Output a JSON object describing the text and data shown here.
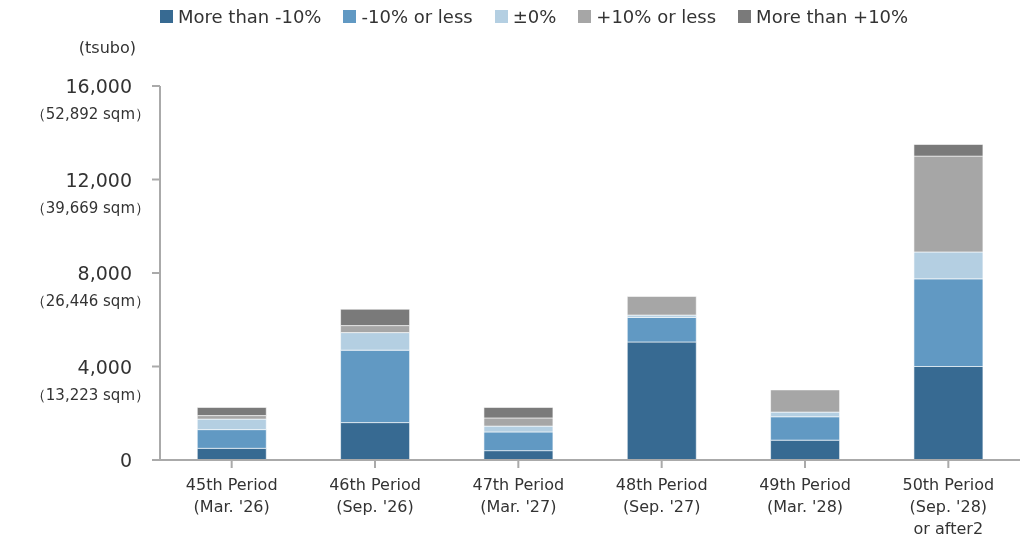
{
  "chart_data": {
    "type": "bar",
    "stacked": true,
    "ylabel": "(tsubo)",
    "categories": [
      "45th Period\n(Mar. '26)",
      "46th Period\n(Sep. '26)",
      "47th Period\n(Mar. '27)",
      "48th Period\n(Sep. '27)",
      "49th Period\n(Mar. '28)",
      "50th Period\n(Sep. '28)\nor after2"
    ],
    "series": [
      {
        "name": "More than -10%",
        "color": "#376a92",
        "values": [
          500,
          1600,
          400,
          5050,
          850,
          4000
        ]
      },
      {
        "name": "-10% or less",
        "color": "#6199c3",
        "values": [
          800,
          3100,
          800,
          1050,
          1000,
          3750
        ]
      },
      {
        "name": "±0%",
        "color": "#b4cfe2",
        "values": [
          450,
          750,
          250,
          100,
          200,
          1150
        ]
      },
      {
        "name": "+10% or less",
        "color": "#a6a6a6",
        "values": [
          150,
          300,
          350,
          800,
          950,
          4100
        ]
      },
      {
        "name": "More than +10%",
        "color": "#7a7a7a",
        "values": [
          350,
          700,
          450,
          0,
          0,
          500
        ]
      }
    ],
    "ylim": [
      0,
      16000
    ],
    "yticks": [
      {
        "value": 0,
        "label": "0"
      },
      {
        "value": 4000,
        "label": "4,000"
      },
      {
        "value": 8000,
        "label": "8,000"
      },
      {
        "value": 12000,
        "label": "12,000"
      },
      {
        "value": 16000,
        "label": "16,000"
      }
    ],
    "annotations": [
      "（13,223 sqm）",
      "（26,446 sqm）",
      "（39,669 sqm）",
      "（52,892 sqm）"
    ],
    "grid": false,
    "legend": "top"
  }
}
